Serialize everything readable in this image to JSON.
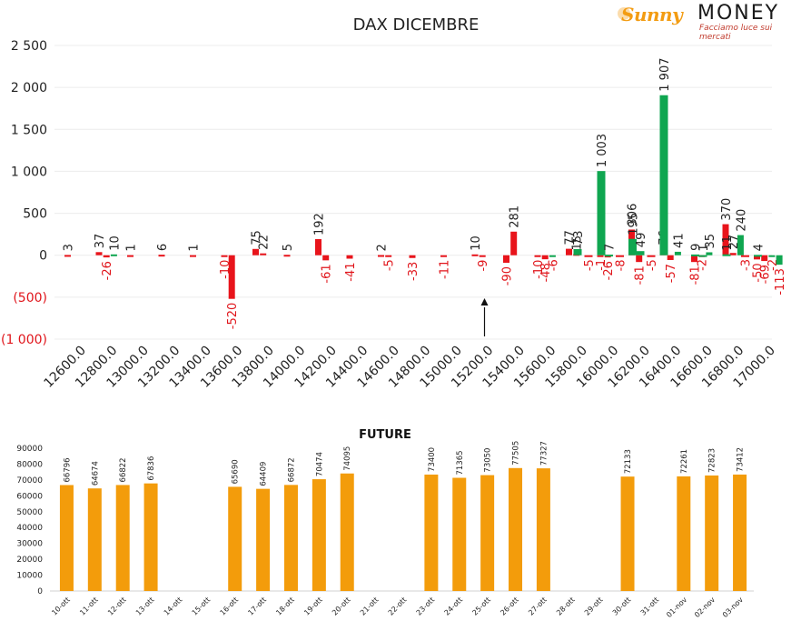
{
  "logo": {
    "script": "Sunny",
    "money": "MONEY",
    "tagline": "Facciamo luce sui mercati"
  },
  "chart_data": [
    {
      "type": "bar",
      "title": "DAX DICEMBRE",
      "ylim": [
        -1000,
        2500
      ],
      "yticks": [
        "2 500",
        "2 000",
        "1 500",
        "1 000",
        "500",
        "0",
        "(500)",
        "(1 000)"
      ],
      "ytick_values": [
        2500,
        2000,
        1500,
        1000,
        500,
        0,
        -500,
        -1000
      ],
      "categories": [
        "12600.0",
        "12800.0",
        "13000.0",
        "13200.0",
        "13400.0",
        "13600.0",
        "13800.0",
        "14000.0",
        "14200.0",
        "14400.0",
        "14600.0",
        "14800.0",
        "15000.0",
        "15200.0",
        "15400.0",
        "15600.0",
        "15800.0",
        "16000.0",
        "16200.0",
        "16400.0",
        "16600.0",
        "16800.0",
        "17000.0"
      ],
      "series": [
        {
          "color": "#e8141b",
          "values": [
            3,
            37,
            1,
            6,
            1,
            -10,
            75,
            5,
            192,
            -41,
            2,
            -33,
            -11,
            10,
            -90,
            -10,
            77,
            -1,
            306,
            76,
            -81,
            370,
            -50
          ]
        },
        {
          "color": "#e8141b",
          "values": [
            0,
            -26,
            0,
            0,
            0,
            -520,
            22,
            0,
            -61,
            0,
            -5,
            0,
            0,
            -9,
            281,
            -48,
            15,
            -26,
            -81,
            -57,
            -2,
            27,
            -69
          ]
        },
        {
          "color": "#0fa650",
          "values": [
            0,
            10,
            0,
            0,
            0,
            0,
            0,
            0,
            0,
            0,
            0,
            0,
            0,
            0,
            0,
            -6,
            0,
            0,
            0,
            41,
            35,
            240,
            -2
          ]
        },
        {
          "color": "#0fa650",
          "values": [
            0,
            0,
            0,
            0,
            0,
            0,
            0,
            0,
            0,
            0,
            0,
            0,
            0,
            0,
            0,
            0,
            0,
            0,
            0,
            0,
            0,
            0,
            -113
          ]
        }
      ],
      "right_values": [
        {
          "category": "16000.0",
          "green": 1003,
          "red": -5,
          "extra": 73
        },
        {
          "category": "16200.0",
          "green": 195,
          "red": -8,
          "extra": 7
        },
        {
          "category": "16400.0",
          "green": 1907,
          "red": -5,
          "extra": 49
        },
        {
          "category": "16600.0",
          "green": 9,
          "red": 0,
          "extra": 0
        },
        {
          "category": "16800.0",
          "green": 11,
          "red": 0,
          "extra": 1
        },
        {
          "category": "17000.0",
          "green": 4,
          "red": -3,
          "extra": 0
        }
      ],
      "arrow_at": "15200.0",
      "grid": true
    },
    {
      "type": "bar",
      "title": "FUTURE",
      "ylim": [
        0,
        90000
      ],
      "yticks": [
        "90000",
        "80000",
        "70000",
        "60000",
        "50000",
        "40000",
        "30000",
        "20000",
        "10000",
        "0"
      ],
      "ytick_values": [
        90000,
        80000,
        70000,
        60000,
        50000,
        40000,
        30000,
        20000,
        10000,
        0
      ],
      "color": "#f39c0b",
      "categories": [
        "10-ott",
        "11-ott",
        "12-ott",
        "13-ott",
        "14-ott",
        "15-ott",
        "16-ott",
        "17-ott",
        "18-ott",
        "19-ott",
        "20-ott",
        "21-ott",
        "22-ott",
        "23-ott",
        "24-ott",
        "25-ott",
        "26-ott",
        "27-ott",
        "28-ott",
        "29-ott",
        "30-ott",
        "31-ott",
        "01-nov",
        "02-nov",
        "03-nov"
      ],
      "values": [
        66796,
        64674,
        66822,
        67836,
        null,
        null,
        65690,
        64409,
        66872,
        70474,
        74095,
        null,
        null,
        73400,
        71365,
        73050,
        77505,
        77327,
        null,
        null,
        72133,
        null,
        72261,
        72823,
        73412
      ],
      "labels": [
        "66796",
        "64674",
        "66822",
        "67836",
        "",
        "",
        "65690",
        "64409",
        "66872",
        "70474",
        "74095",
        "",
        "",
        "73400",
        "71365",
        "73050",
        "77505",
        "77327",
        "",
        "",
        "72133",
        "",
        "72261",
        "72823",
        "73412"
      ]
    }
  ]
}
